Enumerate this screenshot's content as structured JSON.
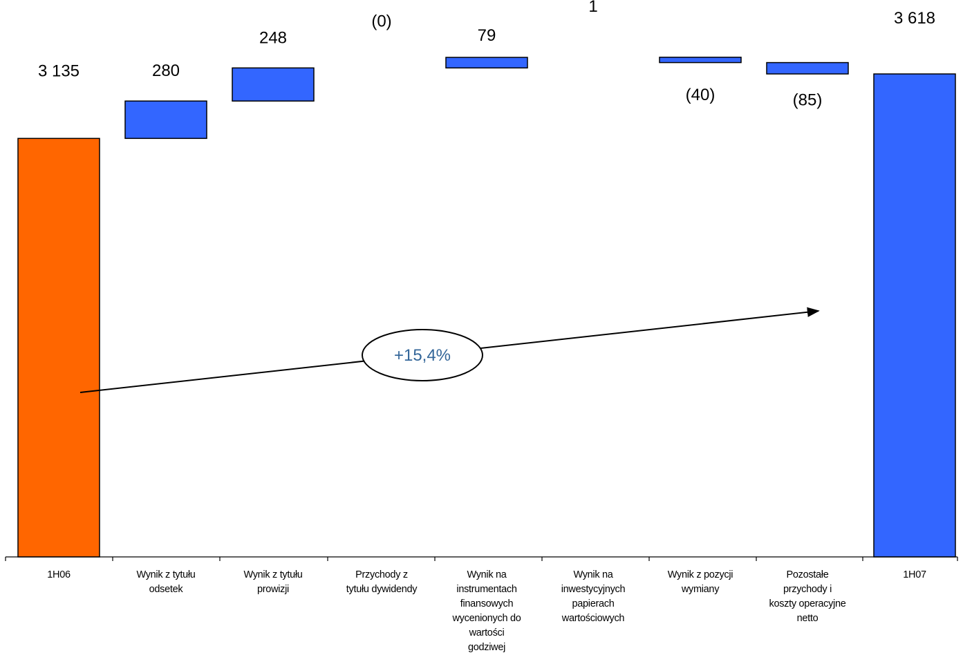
{
  "chart_data": {
    "type": "bar",
    "subtype": "waterfall",
    "title": "",
    "xlabel": "",
    "ylabel": "",
    "ylim": [
      0,
      3700
    ],
    "grid": false,
    "legend": "none",
    "colors": {
      "start": "#FF6600",
      "step": "#3366FF",
      "end": "#3366FF",
      "outline": "#000000"
    },
    "categories": [
      [
        "1H06"
      ],
      [
        "Wynik z tytułu",
        "odsetek"
      ],
      [
        "Wynik z tytułu",
        "prowizji"
      ],
      [
        "Przychody z",
        "tytułu dywidendy"
      ],
      [
        "Wynik na",
        "instrumentach",
        "finansowych",
        "wycenionych do",
        "wartości",
        "godziwej"
      ],
      [
        "Wynik na",
        "inwestycyjnych",
        "papierach",
        "wartościowych"
      ],
      [
        "Wynik z pozycji",
        "wymiany"
      ],
      [
        "Pozostałe",
        "przychody i",
        "koszty operacyjne",
        "netto"
      ],
      [
        "1H07"
      ]
    ],
    "bars": [
      {
        "kind": "total",
        "value": 3135,
        "label": "3 135"
      },
      {
        "kind": "delta",
        "value": 280,
        "label": "280"
      },
      {
        "kind": "delta",
        "value": 248,
        "label": "248"
      },
      {
        "kind": "delta",
        "value": 0,
        "label": "(0)"
      },
      {
        "kind": "delta",
        "value": 79,
        "label": "79"
      },
      {
        "kind": "delta",
        "value": 1,
        "label": "1"
      },
      {
        "kind": "delta",
        "value": -40,
        "label": "(40)"
      },
      {
        "kind": "delta",
        "value": -85,
        "label": "(85)"
      },
      {
        "kind": "total",
        "value": 3618,
        "label": "3 618"
      }
    ],
    "annotation": {
      "text": "+15,4%",
      "color": "#336699"
    }
  }
}
